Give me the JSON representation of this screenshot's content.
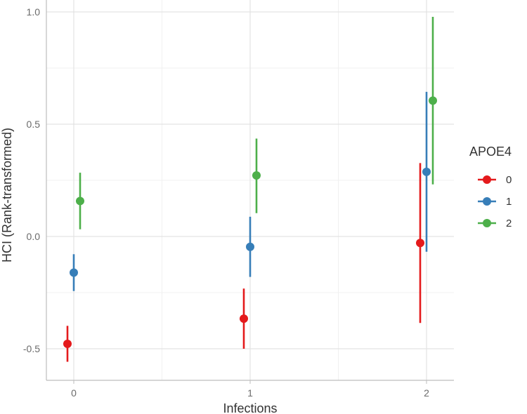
{
  "chart_data": {
    "type": "scatter",
    "xlabel": "Infections",
    "ylabel": "HCI (Rank-transformed)",
    "categories": [
      "0",
      "1",
      "2"
    ],
    "ylim": [
      -0.645,
      1.03
    ],
    "yticks": [
      "-0.5",
      "0.0",
      "0.5",
      "1.0"
    ],
    "ytick_values": [
      -0.5,
      0.0,
      0.5,
      1.0
    ],
    "grid": true,
    "legend": {
      "title": "APOE4",
      "position": "right"
    },
    "series": [
      {
        "name": "0",
        "color": "#e41a1c",
        "values": [
          -0.478,
          -0.366,
          -0.029
        ],
        "lower": [
          -0.558,
          -0.5,
          -0.385
        ],
        "upper": [
          -0.398,
          -0.232,
          0.327
        ]
      },
      {
        "name": "1",
        "color": "#377eb8",
        "values": [
          -0.161,
          -0.046,
          0.288
        ],
        "lower": [
          -0.243,
          -0.18,
          -0.068
        ],
        "upper": [
          -0.079,
          0.088,
          0.644
        ]
      },
      {
        "name": "2",
        "color": "#4daf4a",
        "values": [
          0.158,
          0.272,
          0.605
        ],
        "lower": [
          0.032,
          0.104,
          0.232
        ],
        "upper": [
          0.284,
          0.436,
          0.978
        ]
      }
    ]
  }
}
